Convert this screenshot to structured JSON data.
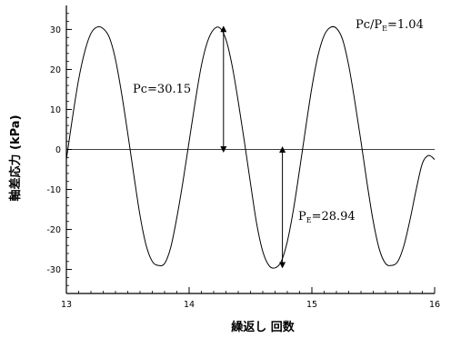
{
  "chart_data": {
    "type": "line",
    "title": "",
    "xlabel": "繰返し 回数",
    "ylabel": "軸差応力 (kPa)",
    "xlim": [
      13,
      16
    ],
    "ylim": [
      -36,
      36
    ],
    "xticks": [
      13,
      14,
      15,
      16
    ],
    "xtick_labels": [
      "13",
      "14",
      "15",
      "16"
    ],
    "yticks": [
      30,
      20,
      10,
      0,
      -10,
      -20,
      -30
    ],
    "ytick_labels": [
      "30",
      "20",
      "10",
      "0",
      "-10",
      "-20",
      "-30"
    ],
    "grid": false,
    "legend": "none",
    "reference_line_y": 0,
    "series": [
      {
        "style": "thin-black-line",
        "x": [
          13.0,
          13.05,
          13.1,
          13.15,
          13.2,
          13.25,
          13.3,
          13.35,
          13.4,
          13.45,
          13.5,
          13.55,
          13.6,
          13.65,
          13.7,
          13.75,
          13.8,
          13.85,
          13.9,
          13.95,
          14.0,
          14.05,
          14.1,
          14.15,
          14.2,
          14.25,
          14.3,
          14.35,
          14.4,
          14.45,
          14.5,
          14.55,
          14.6,
          14.65,
          14.7,
          14.75,
          14.8,
          14.85,
          14.9,
          14.95,
          15.0,
          15.05,
          15.1,
          15.15,
          15.2,
          15.25,
          15.3,
          15.35,
          15.4,
          15.45,
          15.5,
          15.55,
          15.6,
          15.65,
          15.7,
          15.75,
          15.8,
          15.85,
          15.9,
          15.95,
          16.0
        ],
        "y": [
          -2.5,
          8.0,
          17.5,
          24.5,
          29.0,
          30.6,
          30.2,
          28.0,
          22.5,
          14.0,
          4.0,
          -6.5,
          -16.5,
          -24.0,
          -28.0,
          -29.0,
          -28.5,
          -24.5,
          -17.0,
          -8.0,
          2.0,
          12.0,
          21.0,
          27.0,
          30.0,
          30.4,
          27.5,
          21.0,
          12.0,
          2.0,
          -8.5,
          -18.5,
          -25.5,
          -29.0,
          -29.6,
          -28.0,
          -23.0,
          -15.0,
          -5.0,
          5.5,
          15.5,
          23.5,
          28.5,
          30.5,
          30.3,
          27.5,
          21.0,
          12.0,
          2.0,
          -8.5,
          -18.0,
          -25.0,
          -28.5,
          -29.0,
          -28.0,
          -24.0,
          -17.5,
          -10.0,
          -3.5,
          -1.5,
          -2.5
        ]
      }
    ],
    "annotations": [
      {
        "label": "Pc/P",
        "subscript": "E",
        "suffix": "=1.04"
      },
      {
        "label": "Pc=30.15"
      },
      {
        "label": "P",
        "subscript": "E",
        "suffix": "=28.94"
      }
    ],
    "double_arrows": [
      {
        "x": 14.28,
        "y_from": 0,
        "y_to": 30.15
      },
      {
        "x": 14.76,
        "y_from": 0,
        "y_to": -28.94
      }
    ]
  }
}
